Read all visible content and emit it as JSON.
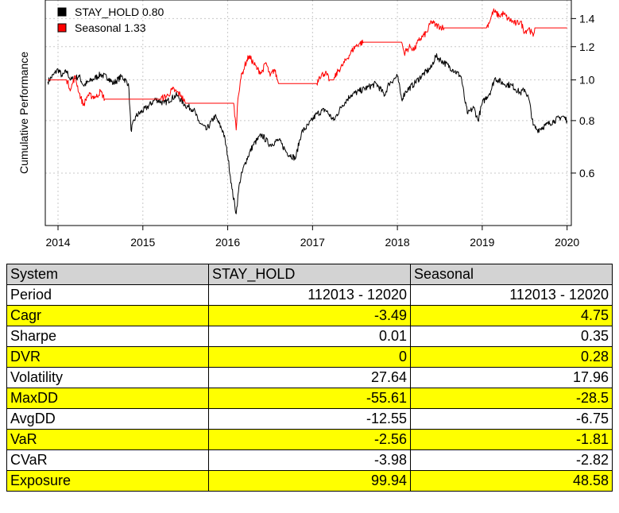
{
  "chart_data": {
    "type": "line",
    "ylabel": "Cumulative Performance",
    "y_scale": "log",
    "ylim": [
      0.45,
      1.55
    ],
    "xlim": [
      2013.85,
      2020.05
    ],
    "y_ticks": [
      0.6,
      0.8,
      1.0,
      1.2,
      1.4
    ],
    "y_tick_labels": [
      "0.6",
      "0.8",
      "1.0",
      "1.2",
      "1.4"
    ],
    "x_ticks": [
      2014,
      2015,
      2016,
      2017,
      2018,
      2019,
      2020
    ],
    "x_tick_labels": [
      "2014",
      "2015",
      "2016",
      "2017",
      "2018",
      "2019",
      "2020"
    ],
    "grid": true,
    "legend_position": "top-left",
    "legend": [
      "STAY_HOLD 0.80",
      "Seasonal 1.33"
    ],
    "series": [
      {
        "name": "STAY_HOLD",
        "color": "#000000",
        "points": [
          [
            2013.88,
            0.99
          ],
          [
            2013.95,
            1.03
          ],
          [
            2014.0,
            1.06
          ],
          [
            2014.05,
            1.02
          ],
          [
            2014.1,
            1.05
          ],
          [
            2014.15,
            1.0
          ],
          [
            2014.25,
            1.02
          ],
          [
            2014.3,
            0.97
          ],
          [
            2014.4,
            1.0
          ],
          [
            2014.5,
            1.03
          ],
          [
            2014.6,
            1.01
          ],
          [
            2014.65,
            0.98
          ],
          [
            2014.75,
            1.02
          ],
          [
            2014.83,
            0.98
          ],
          [
            2014.86,
            0.76
          ],
          [
            2014.92,
            0.82
          ],
          [
            2015.05,
            0.86
          ],
          [
            2015.15,
            0.9
          ],
          [
            2015.25,
            0.88
          ],
          [
            2015.4,
            0.92
          ],
          [
            2015.5,
            0.87
          ],
          [
            2015.6,
            0.85
          ],
          [
            2015.65,
            0.8
          ],
          [
            2015.75,
            0.76
          ],
          [
            2015.85,
            0.82
          ],
          [
            2015.95,
            0.75
          ],
          [
            2016.0,
            0.66
          ],
          [
            2016.05,
            0.55
          ],
          [
            2016.1,
            0.48
          ],
          [
            2016.14,
            0.57
          ],
          [
            2016.2,
            0.63
          ],
          [
            2016.3,
            0.7
          ],
          [
            2016.4,
            0.74
          ],
          [
            2016.5,
            0.7
          ],
          [
            2016.6,
            0.72
          ],
          [
            2016.7,
            0.67
          ],
          [
            2016.8,
            0.65
          ],
          [
            2016.87,
            0.75
          ],
          [
            2016.95,
            0.78
          ],
          [
            2017.05,
            0.83
          ],
          [
            2017.15,
            0.85
          ],
          [
            2017.25,
            0.8
          ],
          [
            2017.35,
            0.87
          ],
          [
            2017.45,
            0.92
          ],
          [
            2017.55,
            0.94
          ],
          [
            2017.65,
            0.96
          ],
          [
            2017.75,
            0.98
          ],
          [
            2017.85,
            0.92
          ],
          [
            2017.9,
            0.98
          ],
          [
            2018.0,
            1.02
          ],
          [
            2018.05,
            0.9
          ],
          [
            2018.1,
            0.94
          ],
          [
            2018.2,
            0.98
          ],
          [
            2018.3,
            1.03
          ],
          [
            2018.4,
            1.07
          ],
          [
            2018.45,
            1.14
          ],
          [
            2018.55,
            1.1
          ],
          [
            2018.65,
            1.06
          ],
          [
            2018.75,
            1.02
          ],
          [
            2018.8,
            0.88
          ],
          [
            2018.83,
            0.83
          ],
          [
            2018.9,
            0.86
          ],
          [
            2018.95,
            0.8
          ],
          [
            2019.0,
            0.88
          ],
          [
            2019.1,
            0.94
          ],
          [
            2019.15,
            1.01
          ],
          [
            2019.25,
            0.98
          ],
          [
            2019.35,
            0.97
          ],
          [
            2019.45,
            0.93
          ],
          [
            2019.5,
            0.95
          ],
          [
            2019.55,
            0.9
          ],
          [
            2019.6,
            0.78
          ],
          [
            2019.65,
            0.76
          ],
          [
            2019.75,
            0.78
          ],
          [
            2019.85,
            0.8
          ],
          [
            2019.95,
            0.82
          ],
          [
            2020.0,
            0.8
          ]
        ]
      },
      {
        "name": "Seasonal",
        "color": "#ff0000",
        "points": [
          [
            2013.88,
            1.0
          ],
          [
            2014.1,
            1.0
          ],
          [
            2014.15,
            0.95
          ],
          [
            2014.2,
            1.02
          ],
          [
            2014.25,
            0.93
          ],
          [
            2014.3,
            0.87
          ],
          [
            2014.35,
            0.92
          ],
          [
            2014.45,
            0.91
          ],
          [
            2014.5,
            0.94
          ],
          [
            2014.55,
            0.9
          ],
          [
            2014.83,
            0.9
          ],
          [
            2014.85,
            0.9
          ],
          [
            2015.2,
            0.9
          ],
          [
            2015.3,
            0.92
          ],
          [
            2015.35,
            0.95
          ],
          [
            2015.45,
            0.92
          ],
          [
            2015.5,
            0.88
          ],
          [
            2016.07,
            0.88
          ],
          [
            2016.1,
            0.76
          ],
          [
            2016.12,
            0.9
          ],
          [
            2016.15,
            1.0
          ],
          [
            2016.2,
            1.08
          ],
          [
            2016.25,
            1.14
          ],
          [
            2016.3,
            1.1
          ],
          [
            2016.35,
            1.06
          ],
          [
            2016.4,
            1.04
          ],
          [
            2016.45,
            1.1
          ],
          [
            2016.5,
            1.02
          ],
          [
            2016.55,
            1.06
          ],
          [
            2016.6,
            0.98
          ],
          [
            2017.05,
            0.98
          ],
          [
            2017.08,
            1.02
          ],
          [
            2017.15,
            1.04
          ],
          [
            2017.2,
            1.0
          ],
          [
            2017.25,
            1.0
          ],
          [
            2017.3,
            1.05
          ],
          [
            2017.35,
            1.08
          ],
          [
            2017.4,
            1.12
          ],
          [
            2017.45,
            1.16
          ],
          [
            2017.5,
            1.2
          ],
          [
            2017.55,
            1.22
          ],
          [
            2017.6,
            1.23
          ],
          [
            2018.05,
            1.23
          ],
          [
            2018.08,
            1.16
          ],
          [
            2018.15,
            1.2
          ],
          [
            2018.2,
            1.18
          ],
          [
            2018.25,
            1.24
          ],
          [
            2018.35,
            1.3
          ],
          [
            2018.4,
            1.38
          ],
          [
            2018.45,
            1.35
          ],
          [
            2018.55,
            1.33
          ],
          [
            2019.05,
            1.33
          ],
          [
            2019.1,
            1.4
          ],
          [
            2019.13,
            1.46
          ],
          [
            2019.2,
            1.42
          ],
          [
            2019.25,
            1.44
          ],
          [
            2019.3,
            1.4
          ],
          [
            2019.4,
            1.36
          ],
          [
            2019.45,
            1.38
          ],
          [
            2019.5,
            1.3
          ],
          [
            2019.55,
            1.33
          ],
          [
            2019.6,
            1.27
          ],
          [
            2019.62,
            1.33
          ],
          [
            2020.0,
            1.33
          ]
        ]
      }
    ]
  },
  "table": {
    "headers": [
      "System",
      "STAY_HOLD",
      "Seasonal"
    ],
    "rows": [
      {
        "label": "Period",
        "stay_hold": "112013 - 12020",
        "seasonal": "112013 - 12020",
        "highlight": false
      },
      {
        "label": "Cagr",
        "stay_hold": "-3.49",
        "seasonal": "4.75",
        "highlight": true
      },
      {
        "label": "Sharpe",
        "stay_hold": "0.01",
        "seasonal": "0.35",
        "highlight": false
      },
      {
        "label": "DVR",
        "stay_hold": "0",
        "seasonal": "0.28",
        "highlight": true
      },
      {
        "label": "Volatility",
        "stay_hold": "27.64",
        "seasonal": "17.96",
        "highlight": false
      },
      {
        "label": "MaxDD",
        "stay_hold": "-55.61",
        "seasonal": "-28.5",
        "highlight": true
      },
      {
        "label": "AvgDD",
        "stay_hold": "-12.55",
        "seasonal": "-6.75",
        "highlight": false
      },
      {
        "label": "VaR",
        "stay_hold": "-2.56",
        "seasonal": "-1.81",
        "highlight": true
      },
      {
        "label": "CVaR",
        "stay_hold": "-3.98",
        "seasonal": "-2.82",
        "highlight": false
      },
      {
        "label": "Exposure",
        "stay_hold": "99.94",
        "seasonal": "48.58",
        "highlight": true
      }
    ]
  },
  "colors": {
    "highlight_row": "#ffff00",
    "header_row": "#d3d3d3",
    "grid": "#c8c8c8"
  }
}
